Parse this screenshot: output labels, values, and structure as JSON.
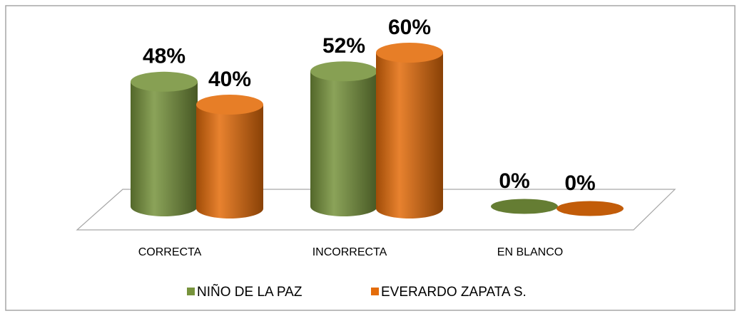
{
  "chart_data": {
    "type": "bar3d",
    "categories": [
      "CORRECTA",
      "INCORRECTA",
      "EN BLANCO"
    ],
    "series": [
      {
        "name": "NIÑO DE LA PAZ",
        "color": "#77933c",
        "values": [
          48,
          52,
          0
        ],
        "value_labels": [
          "48%",
          "52%",
          "0%"
        ]
      },
      {
        "name": "EVERARDO ZAPATA S.",
        "color": "#e46c0a",
        "values": [
          40,
          60,
          0
        ],
        "value_labels": [
          "40%",
          "60%",
          "0%"
        ]
      }
    ],
    "legend": "bottom"
  }
}
